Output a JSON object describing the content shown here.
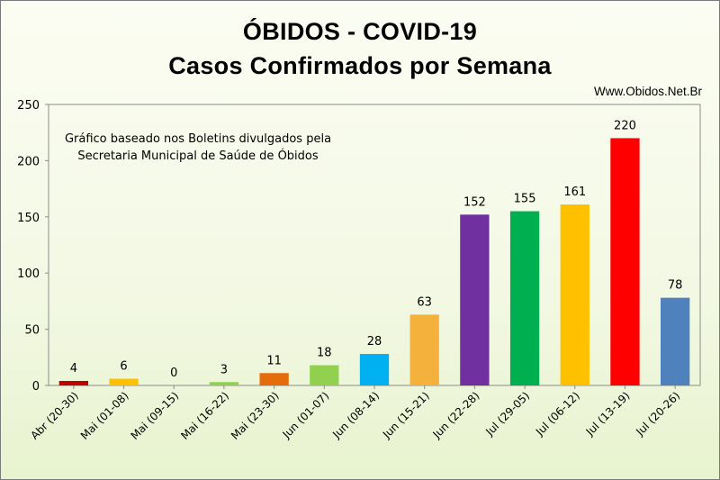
{
  "title_line1": "ÓBIDOS - COVID-19",
  "title_line2": "Casos Confirmados por Semana",
  "website": "Www.Obidos.Net.Br",
  "note_line1": "Gráfico baseado nos Boletins divulgados pela",
  "note_line2": "Secretaria Municipal de Saúde de Óbidos",
  "chart_data": {
    "type": "bar",
    "title": "ÓBIDOS - COVID-19 Casos Confirmados por Semana",
    "xlabel": "",
    "ylabel": "",
    "ylim": [
      0,
      250
    ],
    "yticks": [
      0,
      50,
      100,
      150,
      200,
      250
    ],
    "grid": false,
    "categories": [
      "Abr (20-30)",
      "Mai (01-08)",
      "Mai (09-15)",
      "Mai (16-22)",
      "Mai (23-30)",
      "Jun (01-07)",
      "Jun (08-14)",
      "Jun (15-21)",
      "Jun (22-28)",
      "Jul (29-05)",
      "Jul (06-12)",
      "Jul (13-19)",
      "Jul (20-26)"
    ],
    "values": [
      4,
      6,
      0,
      3,
      11,
      18,
      28,
      63,
      152,
      155,
      161,
      220,
      78
    ],
    "colors": [
      "#c00000",
      "#ffc000",
      "#9bbb59",
      "#92d050",
      "#e46c0a",
      "#92d050",
      "#00b0f0",
      "#f4b13c",
      "#7030a0",
      "#00b050",
      "#ffc000",
      "#ff0000",
      "#4f81bd"
    ]
  }
}
